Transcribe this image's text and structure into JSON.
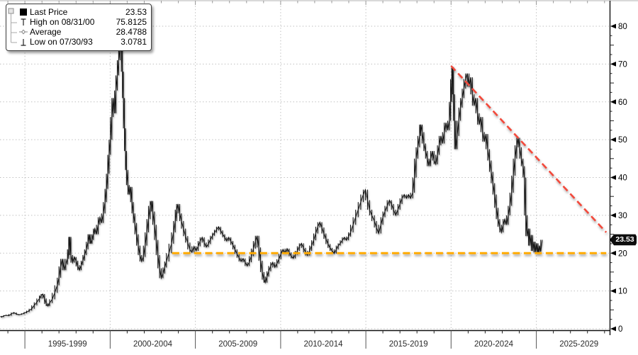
{
  "legend": {
    "rows": [
      {
        "label": "Last Price",
        "value": "23.53",
        "marker": "square"
      },
      {
        "label": "High on 08/31/00",
        "value": "75.8125",
        "marker": "high-tick"
      },
      {
        "label": "Average",
        "value": "28.4788",
        "marker": "average-dash"
      },
      {
        "label": "Low on 07/30/93",
        "value": "3.0781",
        "marker": "low-tick"
      }
    ]
  },
  "badge": {
    "text": "23.53"
  },
  "colors": {
    "series": "#191919",
    "downtrend_line": "#f2493b",
    "support_line": "#ffaa00",
    "grid": "#bdbdbd",
    "badge_bg": "#0d0d0d",
    "badge_text": "#ffffff"
  },
  "chart_data": {
    "type": "line",
    "title": "",
    "series_name": "Last Price",
    "legend_position": "top-left",
    "grid": "dotted",
    "y_axis_side": "right",
    "x_range": [
      1993.54,
      2029.3
    ],
    "y_range": [
      0,
      80
    ],
    "y_ticks": [
      0,
      10,
      20,
      30,
      40,
      50,
      60,
      70,
      80
    ],
    "x_major_years": [
      1995,
      2000,
      2005,
      2010,
      2015,
      2020,
      2025
    ],
    "x_bucket_labels": [
      "1995-1999",
      "2000-2004",
      "2005-2009",
      "2010-2014",
      "2015-2019",
      "2020-2024",
      "2025-2029"
    ],
    "stats": {
      "last_price": 23.53,
      "high_value": 75.8125,
      "high_date": "08/31/00",
      "average": 28.4788,
      "low_value": 3.0781,
      "low_date": "07/30/93"
    },
    "annotations": {
      "downtrend_line": {
        "style": "dashed",
        "color": "#f2493b",
        "from_year": 2020.0,
        "from_value": 69.5,
        "to_year": 2029.1,
        "to_value": 25.5
      },
      "support_line": {
        "style": "dashed",
        "color": "#ffaa00",
        "value": 20,
        "from_year": 2003.64,
        "to_year": 2029.1
      }
    },
    "points": [
      [
        1993.56,
        3.3
      ],
      [
        1993.63,
        3.08
      ],
      [
        1993.75,
        3.4
      ],
      [
        1993.9,
        3.6
      ],
      [
        1994.05,
        3.45
      ],
      [
        1994.2,
        3.9
      ],
      [
        1994.35,
        4.3
      ],
      [
        1994.5,
        3.9
      ],
      [
        1994.65,
        3.7
      ],
      [
        1994.8,
        3.85
      ],
      [
        1994.95,
        4.1
      ],
      [
        1995.1,
        4.4
      ],
      [
        1995.25,
        4.8
      ],
      [
        1995.4,
        5.3
      ],
      [
        1995.55,
        6.2
      ],
      [
        1995.7,
        7.0
      ],
      [
        1995.85,
        8.0
      ],
      [
        1995.95,
        8.8
      ],
      [
        1996.05,
        9.2
      ],
      [
        1996.15,
        8.0
      ],
      [
        1996.25,
        6.6
      ],
      [
        1996.35,
        6.0
      ],
      [
        1996.45,
        6.8
      ],
      [
        1996.6,
        7.8
      ],
      [
        1996.75,
        9.5
      ],
      [
        1996.9,
        11.5
      ],
      [
        1997.0,
        13.5
      ],
      [
        1997.1,
        16.5
      ],
      [
        1997.2,
        18.5
      ],
      [
        1997.3,
        15.5
      ],
      [
        1997.4,
        17.0
      ],
      [
        1997.5,
        18.5
      ],
      [
        1997.57,
        21.0
      ],
      [
        1997.63,
        24.3
      ],
      [
        1997.7,
        19.5
      ],
      [
        1997.8,
        17.5
      ],
      [
        1997.9,
        19.0
      ],
      [
        1998.0,
        18.0
      ],
      [
        1998.1,
        16.5
      ],
      [
        1998.2,
        15.5
      ],
      [
        1998.3,
        16.8
      ],
      [
        1998.4,
        18.0
      ],
      [
        1998.5,
        19.5
      ],
      [
        1998.6,
        21.0
      ],
      [
        1998.7,
        23.0
      ],
      [
        1998.78,
        25.0
      ],
      [
        1998.86,
        22.5
      ],
      [
        1998.94,
        23.5
      ],
      [
        1999.02,
        25.0
      ],
      [
        1999.1,
        26.5
      ],
      [
        1999.2,
        25.0
      ],
      [
        1999.3,
        27.5
      ],
      [
        1999.4,
        29.5
      ],
      [
        1999.5,
        28.0
      ],
      [
        1999.6,
        30.5
      ],
      [
        1999.7,
        33.5
      ],
      [
        1999.78,
        37.0
      ],
      [
        1999.86,
        41.0
      ],
      [
        1999.94,
        46.0
      ],
      [
        2000.02,
        50.0
      ],
      [
        2000.1,
        56.0
      ],
      [
        2000.18,
        61.0
      ],
      [
        2000.26,
        57.0
      ],
      [
        2000.34,
        63.0
      ],
      [
        2000.42,
        67.0
      ],
      [
        2000.5,
        71.0
      ],
      [
        2000.58,
        74.0
      ],
      [
        2000.66,
        75.3
      ],
      [
        2000.72,
        68.0
      ],
      [
        2000.78,
        61.0
      ],
      [
        2000.84,
        53.0
      ],
      [
        2000.9,
        47.0
      ],
      [
        2000.96,
        42.0
      ],
      [
        2001.04,
        38.0
      ],
      [
        2001.12,
        35.5
      ],
      [
        2001.2,
        37.5
      ],
      [
        2001.28,
        33.5
      ],
      [
        2001.36,
        30.5
      ],
      [
        2001.45,
        28.0
      ],
      [
        2001.55,
        25.0
      ],
      [
        2001.65,
        22.0
      ],
      [
        2001.75,
        19.5
      ],
      [
        2001.85,
        17.8
      ],
      [
        2001.95,
        19.0
      ],
      [
        2002.05,
        22.0
      ],
      [
        2002.15,
        25.5
      ],
      [
        2002.25,
        29.0
      ],
      [
        2002.35,
        32.5
      ],
      [
        2002.42,
        33.8
      ],
      [
        2002.5,
        31.0
      ],
      [
        2002.6,
        27.5
      ],
      [
        2002.7,
        23.5
      ],
      [
        2002.8,
        19.5
      ],
      [
        2002.9,
        16.0
      ],
      [
        2003.0,
        13.4
      ],
      [
        2003.1,
        14.6
      ],
      [
        2003.2,
        16.2
      ],
      [
        2003.3,
        17.8
      ],
      [
        2003.45,
        20.0
      ],
      [
        2003.6,
        22.5
      ],
      [
        2003.72,
        25.5
      ],
      [
        2003.82,
        28.5
      ],
      [
        2003.9,
        31.5
      ],
      [
        2003.98,
        33.0
      ],
      [
        2004.08,
        30.5
      ],
      [
        2004.18,
        28.5
      ],
      [
        2004.3,
        26.5
      ],
      [
        2004.42,
        24.5
      ],
      [
        2004.55,
        22.8
      ],
      [
        2004.68,
        21.0
      ],
      [
        2004.8,
        20.2
      ],
      [
        2004.92,
        21.8
      ],
      [
        2005.04,
        20.6
      ],
      [
        2005.16,
        21.8
      ],
      [
        2005.28,
        23.2
      ],
      [
        2005.4,
        24.2
      ],
      [
        2005.52,
        22.8
      ],
      [
        2005.64,
        21.6
      ],
      [
        2005.76,
        22.4
      ],
      [
        2005.88,
        23.6
      ],
      [
        2006.0,
        24.6
      ],
      [
        2006.12,
        25.4
      ],
      [
        2006.24,
        26.2
      ],
      [
        2006.36,
        27.0
      ],
      [
        2006.48,
        26.0
      ],
      [
        2006.6,
        25.0
      ],
      [
        2006.72,
        24.2
      ],
      [
        2006.84,
        23.2
      ],
      [
        2006.96,
        24.2
      ],
      [
        2007.08,
        23.2
      ],
      [
        2007.2,
        22.2
      ],
      [
        2007.32,
        21.0
      ],
      [
        2007.44,
        19.8
      ],
      [
        2007.56,
        18.8
      ],
      [
        2007.68,
        17.8
      ],
      [
        2007.8,
        18.6
      ],
      [
        2007.92,
        17.6
      ],
      [
        2008.04,
        16.6
      ],
      [
        2008.16,
        17.6
      ],
      [
        2008.28,
        19.2
      ],
      [
        2008.4,
        21.2
      ],
      [
        2008.52,
        23.2
      ],
      [
        2008.62,
        24.6
      ],
      [
        2008.72,
        21.5
      ],
      [
        2008.82,
        18.0
      ],
      [
        2008.92,
        15.0
      ],
      [
        2009.02,
        13.0
      ],
      [
        2009.1,
        12.2
      ],
      [
        2009.2,
        13.8
      ],
      [
        2009.3,
        15.2
      ],
      [
        2009.42,
        16.6
      ],
      [
        2009.54,
        17.6
      ],
      [
        2009.66,
        16.2
      ],
      [
        2009.78,
        17.2
      ],
      [
        2009.9,
        18.4
      ],
      [
        2010.02,
        19.8
      ],
      [
        2010.14,
        21.0
      ],
      [
        2010.26,
        20.0
      ],
      [
        2010.38,
        21.2
      ],
      [
        2010.5,
        20.2
      ],
      [
        2010.62,
        19.2
      ],
      [
        2010.74,
        18.6
      ],
      [
        2010.86,
        19.6
      ],
      [
        2010.98,
        20.6
      ],
      [
        2011.1,
        21.8
      ],
      [
        2011.22,
        22.6
      ],
      [
        2011.34,
        21.4
      ],
      [
        2011.46,
        20.2
      ],
      [
        2011.58,
        19.4
      ],
      [
        2011.7,
        20.6
      ],
      [
        2011.82,
        22.0
      ],
      [
        2011.94,
        23.4
      ],
      [
        2012.06,
        25.2
      ],
      [
        2012.18,
        27.0
      ],
      [
        2012.3,
        28.2
      ],
      [
        2012.42,
        26.8
      ],
      [
        2012.54,
        25.2
      ],
      [
        2012.66,
        23.8
      ],
      [
        2012.78,
        22.4
      ],
      [
        2012.9,
        21.4
      ],
      [
        2013.02,
        20.6
      ],
      [
        2013.14,
        19.9
      ],
      [
        2013.26,
        21.0
      ],
      [
        2013.38,
        22.0
      ],
      [
        2013.5,
        22.6
      ],
      [
        2013.62,
        23.4
      ],
      [
        2013.74,
        24.2
      ],
      [
        2013.86,
        23.4
      ],
      [
        2013.98,
        24.4
      ],
      [
        2014.1,
        25.5
      ],
      [
        2014.25,
        27.5
      ],
      [
        2014.4,
        29.5
      ],
      [
        2014.55,
        31.5
      ],
      [
        2014.7,
        33.5
      ],
      [
        2014.85,
        35.5
      ],
      [
        2014.97,
        36.8
      ],
      [
        2015.1,
        34.0
      ],
      [
        2015.22,
        31.5
      ],
      [
        2015.35,
        30.0
      ],
      [
        2015.5,
        28.5
      ],
      [
        2015.62,
        26.8
      ],
      [
        2015.75,
        25.2
      ],
      [
        2015.88,
        27.5
      ],
      [
        2016.0,
        29.5
      ],
      [
        2016.12,
        31.0
      ],
      [
        2016.25,
        32.5
      ],
      [
        2016.38,
        34.0
      ],
      [
        2016.5,
        33.0
      ],
      [
        2016.62,
        31.5
      ],
      [
        2016.75,
        30.0
      ],
      [
        2016.88,
        31.5
      ],
      [
        2017.0,
        33.0
      ],
      [
        2017.12,
        34.5
      ],
      [
        2017.25,
        35.5
      ],
      [
        2017.38,
        34.5
      ],
      [
        2017.5,
        35.5
      ],
      [
        2017.62,
        34.5
      ],
      [
        2017.75,
        36.0
      ],
      [
        2017.85,
        40.0
      ],
      [
        2017.95,
        45.0
      ],
      [
        2018.05,
        48.0
      ],
      [
        2018.15,
        51.0
      ],
      [
        2018.22,
        54.0
      ],
      [
        2018.3,
        52.0
      ],
      [
        2018.4,
        49.0
      ],
      [
        2018.5,
        47.0
      ],
      [
        2018.6,
        45.0
      ],
      [
        2018.7,
        43.0
      ],
      [
        2018.8,
        45.0
      ],
      [
        2018.9,
        47.0
      ],
      [
        2019.0,
        44.5
      ],
      [
        2019.1,
        43.5
      ],
      [
        2019.2,
        46.0
      ],
      [
        2019.3,
        48.5
      ],
      [
        2019.4,
        51.0
      ],
      [
        2019.5,
        49.0
      ],
      [
        2019.6,
        52.0
      ],
      [
        2019.7,
        54.5
      ],
      [
        2019.8,
        52.5
      ],
      [
        2019.9,
        55.0
      ],
      [
        2019.97,
        60.0
      ],
      [
        2020.04,
        66.0
      ],
      [
        2020.08,
        69.2
      ],
      [
        2020.14,
        62.0
      ],
      [
        2020.2,
        55.0
      ],
      [
        2020.27,
        47.5
      ],
      [
        2020.35,
        51.0
      ],
      [
        2020.45,
        55.0
      ],
      [
        2020.55,
        58.5
      ],
      [
        2020.65,
        61.0
      ],
      [
        2020.75,
        63.5
      ],
      [
        2020.85,
        66.0
      ],
      [
        2020.95,
        67.5
      ],
      [
        2021.05,
        64.0
      ],
      [
        2021.15,
        66.5
      ],
      [
        2021.25,
        62.0
      ],
      [
        2021.35,
        59.0
      ],
      [
        2021.45,
        61.0
      ],
      [
        2021.55,
        57.0
      ],
      [
        2021.65,
        54.0
      ],
      [
        2021.75,
        56.0
      ],
      [
        2021.85,
        52.0
      ],
      [
        2021.95,
        49.5
      ],
      [
        2022.05,
        51.5
      ],
      [
        2022.15,
        47.5
      ],
      [
        2022.25,
        44.5
      ],
      [
        2022.35,
        41.5
      ],
      [
        2022.45,
        38.5
      ],
      [
        2022.55,
        35.5
      ],
      [
        2022.65,
        32.0
      ],
      [
        2022.75,
        29.0
      ],
      [
        2022.85,
        27.0
      ],
      [
        2022.95,
        25.5
      ],
      [
        2023.05,
        27.5
      ],
      [
        2023.15,
        29.0
      ],
      [
        2023.25,
        27.5
      ],
      [
        2023.35,
        30.0
      ],
      [
        2023.45,
        32.5
      ],
      [
        2023.55,
        36.0
      ],
      [
        2023.65,
        40.5
      ],
      [
        2023.75,
        45.0
      ],
      [
        2023.85,
        48.5
      ],
      [
        2023.93,
        50.5
      ],
      [
        2024.02,
        48.0
      ],
      [
        2024.12,
        45.0
      ],
      [
        2024.22,
        43.0
      ],
      [
        2024.3,
        40.0
      ],
      [
        2024.38,
        30.0
      ],
      [
        2024.46,
        24.5
      ],
      [
        2024.54,
        26.5
      ],
      [
        2024.62,
        22.0
      ],
      [
        2024.7,
        24.8
      ],
      [
        2024.78,
        20.6
      ],
      [
        2024.86,
        23.0
      ],
      [
        2024.94,
        20.2
      ],
      [
        2025.02,
        22.6
      ],
      [
        2025.1,
        19.8
      ],
      [
        2025.18,
        22.0
      ],
      [
        2025.26,
        20.4
      ],
      [
        2025.35,
        23.53
      ]
    ]
  }
}
